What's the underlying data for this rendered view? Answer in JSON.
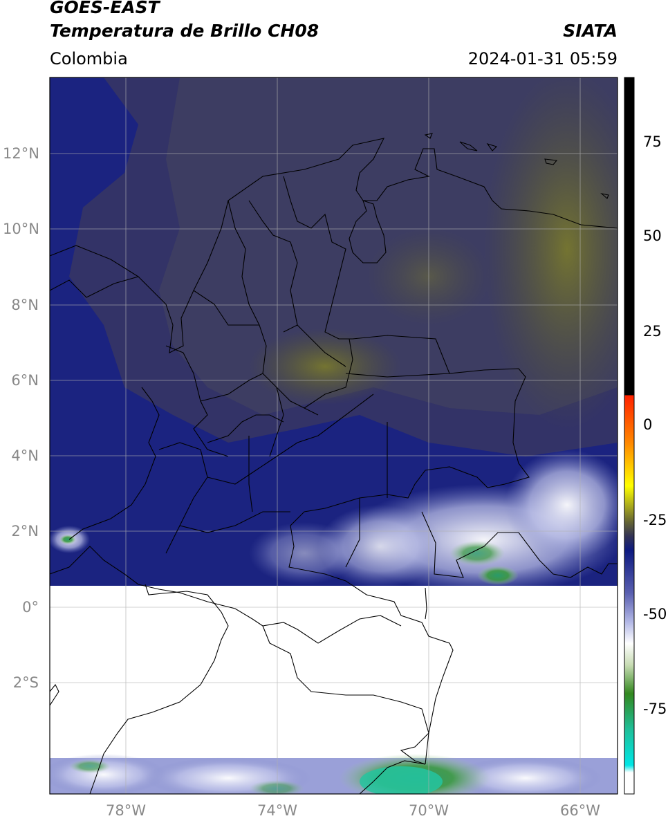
{
  "header": {
    "satellite": "GOES-EAST",
    "product": "Temperatura de Brillo CH08",
    "agency": "SIATA",
    "region": "Colombia",
    "datetime": "2024-01-31 05:59"
  },
  "map": {
    "lat_ticks": [
      "12°N",
      "10°N",
      "8°N",
      "6°N",
      "4°N",
      "2°N",
      "0°",
      "2°S"
    ],
    "lon_ticks": [
      "78°W",
      "74°W",
      "70°W",
      "66°W"
    ],
    "extent": {
      "lon": [
        -80,
        -65
      ],
      "lat": [
        -5,
        14
      ]
    }
  },
  "colorbar": {
    "ticks": [
      "75",
      "50",
      "25",
      "0",
      "-25",
      "-50",
      "-75"
    ],
    "range": [
      -95,
      90
    ],
    "colors": {
      "warm_black": "#000000",
      "red": "#ff2200",
      "orange": "#ff9900",
      "yellow": "#ffff00",
      "olive": "#666633",
      "navy": "#0d1a80",
      "lavender": "#b3b8e6",
      "white": "#ffffff",
      "green": "#33881f",
      "teal": "#1fbf99",
      "cyan": "#00e6e6"
    }
  }
}
